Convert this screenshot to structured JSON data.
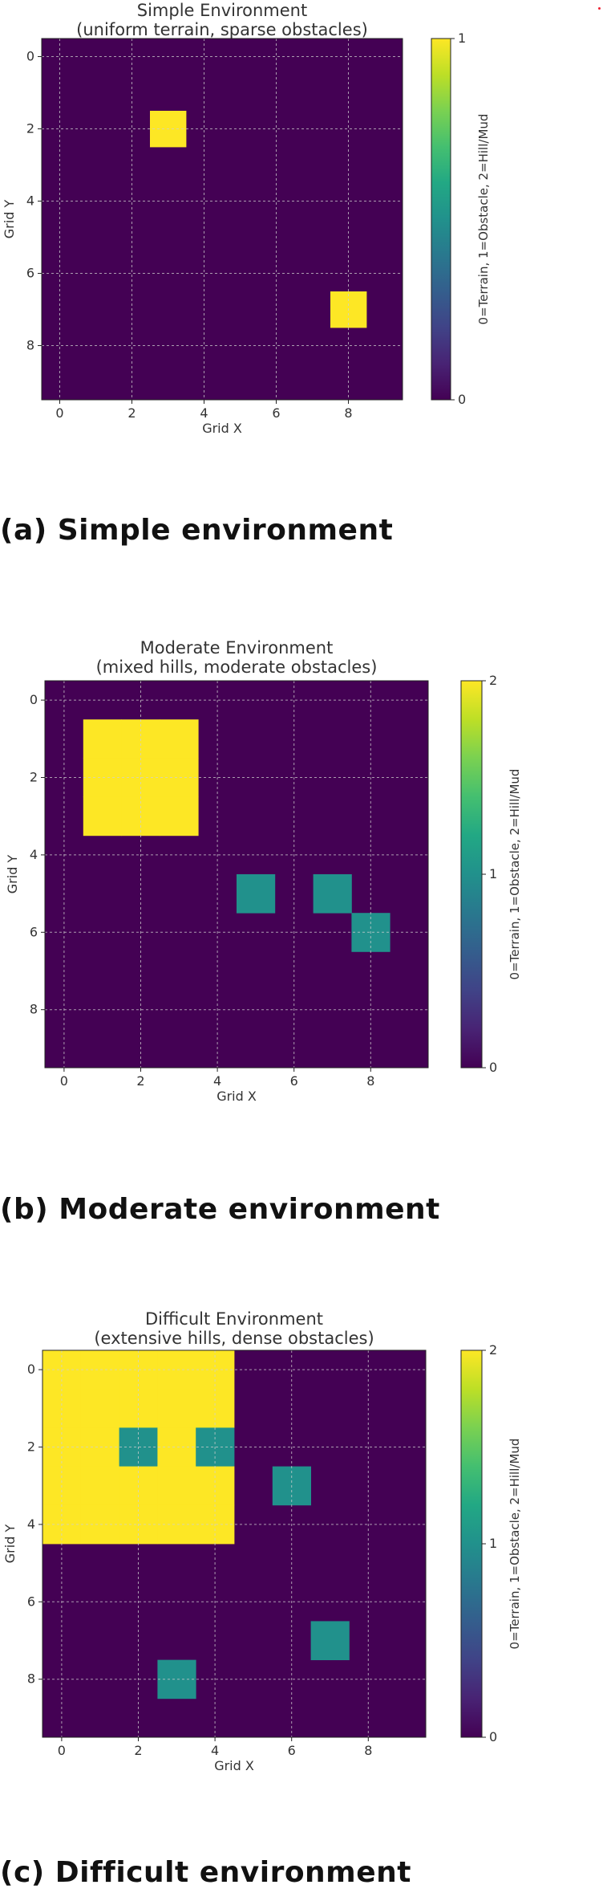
{
  "chart_data": [
    {
      "type": "heatmap",
      "title": "Simple Environment",
      "subtitle": "(uniform terrain, sparse obstacles)",
      "xlabel": "Grid X",
      "ylabel": "Grid Y",
      "colorbar_label": "0=Terrain, 1=Obstacle, 2=Hill/Mud",
      "colorbar_range": [
        0,
        1
      ],
      "colorbar_ticks": [
        "0",
        "1"
      ],
      "x_ticks": [
        "0",
        "2",
        "4",
        "6",
        "8"
      ],
      "y_ticks": [
        "0",
        "2",
        "4",
        "6",
        "8"
      ],
      "grid": true,
      "grid_size": [
        10,
        10
      ],
      "colormap": "viridis",
      "cells": [
        {
          "x": 3,
          "y": 2,
          "value": 1
        },
        {
          "x": 8,
          "y": 7,
          "value": 1
        }
      ],
      "caption": "(a) Simple environment"
    },
    {
      "type": "heatmap",
      "title": "Moderate Environment",
      "subtitle": "(mixed hills, moderate obstacles)",
      "xlabel": "Grid X",
      "ylabel": "Grid Y",
      "colorbar_label": "0=Terrain, 1=Obstacle, 2=Hill/Mud",
      "colorbar_range": [
        0,
        2
      ],
      "colorbar_ticks": [
        "0",
        "1",
        "2"
      ],
      "x_ticks": [
        "0",
        "2",
        "4",
        "6",
        "8"
      ],
      "y_ticks": [
        "0",
        "2",
        "4",
        "6",
        "8"
      ],
      "grid": true,
      "grid_size": [
        10,
        10
      ],
      "colormap": "viridis",
      "cells": [
        {
          "x": 1,
          "y": 1,
          "value": 2
        },
        {
          "x": 2,
          "y": 1,
          "value": 2
        },
        {
          "x": 3,
          "y": 1,
          "value": 2
        },
        {
          "x": 1,
          "y": 2,
          "value": 2
        },
        {
          "x": 2,
          "y": 2,
          "value": 2
        },
        {
          "x": 3,
          "y": 2,
          "value": 2
        },
        {
          "x": 1,
          "y": 3,
          "value": 2
        },
        {
          "x": 2,
          "y": 3,
          "value": 2
        },
        {
          "x": 3,
          "y": 3,
          "value": 2
        },
        {
          "x": 5,
          "y": 5,
          "value": 1
        },
        {
          "x": 7,
          "y": 5,
          "value": 1
        },
        {
          "x": 8,
          "y": 6,
          "value": 1
        }
      ],
      "caption": "(b) Moderate environment"
    },
    {
      "type": "heatmap",
      "title": "Difficult Environment",
      "subtitle": "(extensive hills, dense obstacles)",
      "xlabel": "Grid X",
      "ylabel": "Grid Y",
      "colorbar_label": "0=Terrain, 1=Obstacle, 2=Hill/Mud",
      "colorbar_range": [
        0,
        2
      ],
      "colorbar_ticks": [
        "0",
        "1",
        "2"
      ],
      "x_ticks": [
        "0",
        "2",
        "4",
        "6",
        "8"
      ],
      "y_ticks": [
        "0",
        "2",
        "4",
        "6",
        "8"
      ],
      "grid": true,
      "grid_size": [
        10,
        10
      ],
      "colormap": "viridis",
      "cells": [
        {
          "x": 0,
          "y": 0,
          "value": 2
        },
        {
          "x": 1,
          "y": 0,
          "value": 2
        },
        {
          "x": 2,
          "y": 0,
          "value": 2
        },
        {
          "x": 3,
          "y": 0,
          "value": 2
        },
        {
          "x": 4,
          "y": 0,
          "value": 2
        },
        {
          "x": 0,
          "y": 1,
          "value": 2
        },
        {
          "x": 1,
          "y": 1,
          "value": 2
        },
        {
          "x": 2,
          "y": 1,
          "value": 2
        },
        {
          "x": 3,
          "y": 1,
          "value": 2
        },
        {
          "x": 4,
          "y": 1,
          "value": 2
        },
        {
          "x": 0,
          "y": 2,
          "value": 2
        },
        {
          "x": 1,
          "y": 2,
          "value": 2
        },
        {
          "x": 2,
          "y": 2,
          "value": 1
        },
        {
          "x": 3,
          "y": 2,
          "value": 2
        },
        {
          "x": 4,
          "y": 2,
          "value": 1
        },
        {
          "x": 0,
          "y": 3,
          "value": 2
        },
        {
          "x": 1,
          "y": 3,
          "value": 2
        },
        {
          "x": 2,
          "y": 3,
          "value": 2
        },
        {
          "x": 3,
          "y": 3,
          "value": 2
        },
        {
          "x": 4,
          "y": 3,
          "value": 2
        },
        {
          "x": 0,
          "y": 4,
          "value": 2
        },
        {
          "x": 1,
          "y": 4,
          "value": 2
        },
        {
          "x": 2,
          "y": 4,
          "value": 2
        },
        {
          "x": 3,
          "y": 4,
          "value": 2
        },
        {
          "x": 4,
          "y": 4,
          "value": 2
        },
        {
          "x": 6,
          "y": 3,
          "value": 1
        },
        {
          "x": 7,
          "y": 7,
          "value": 1
        },
        {
          "x": 3,
          "y": 8,
          "value": 1
        }
      ],
      "caption": "(c) Difficult environment"
    }
  ],
  "colors": {
    "viridis_0": "#440154",
    "viridis_mid": "#21918c",
    "viridis_max": "#fde725"
  }
}
